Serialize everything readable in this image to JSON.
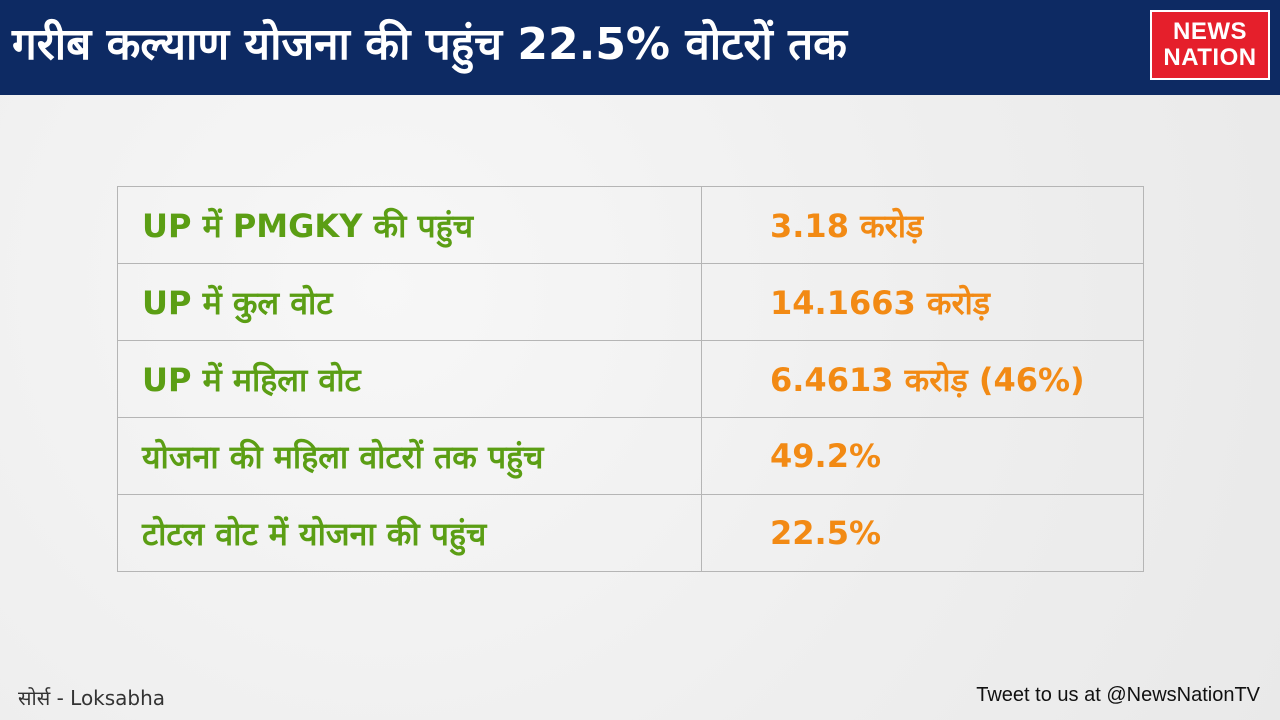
{
  "header": {
    "headline": "गरीब कल्याण योजना की पहुंच 22.5% वोटरों तक",
    "logo_line1": "NEWS",
    "logo_line2": "NATION"
  },
  "colors": {
    "header_bg": "#0d2a63",
    "logo_bg": "#e51f2b",
    "label_text": "#5b9e14",
    "value_text": "#f28a14"
  },
  "table": {
    "rows": [
      {
        "label": "UP में PMGKY की पहुंच",
        "value": "3.18 करोड़"
      },
      {
        "label": "UP में कुल वोट",
        "value": "14.1663 करोड़"
      },
      {
        "label": "UP में महिला वोट",
        "value": "6.4613 करोड़ (46%)"
      },
      {
        "label": "योजना की महिला वोटरों तक पहुंच",
        "value": "49.2%"
      },
      {
        "label": "टोटल वोट में योजना की पहुंच",
        "value": "22.5%"
      }
    ]
  },
  "footer": {
    "source": "सोर्स - Loksabha",
    "tweet": "Tweet to us at @NewsNationTV"
  }
}
